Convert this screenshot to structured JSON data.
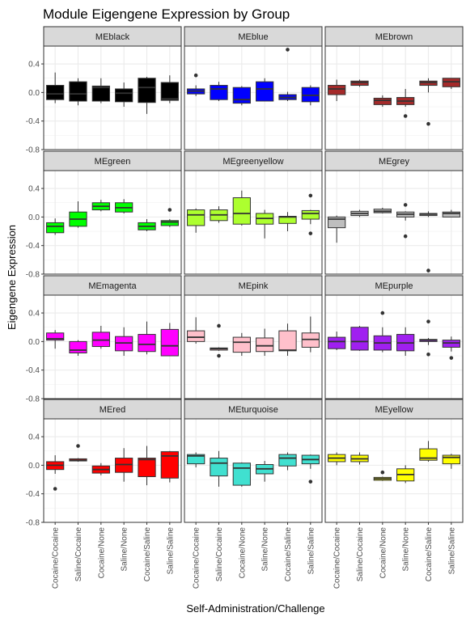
{
  "chart_data": {
    "type": "boxplot",
    "title": "Module Eigengene Expression by Group",
    "xlabel": "Self-Administration/Challenge",
    "ylabel": "Eigengene Expression",
    "ylim": [
      -0.8,
      0.65
    ],
    "yticks": [
      0.4,
      0.0,
      -0.4,
      -0.8
    ],
    "ytick_labels": [
      "0.4",
      "0.0",
      "-0.4",
      "-0.8"
    ],
    "grid": true,
    "facet_layout": {
      "rows": 4,
      "cols": 3
    },
    "categories": [
      "Cocaine/Cocaine",
      "Saline/Cocaine",
      "Cocaine/None",
      "Saline/None",
      "Cocaine/Saline",
      "Saline/Saline"
    ],
    "panels": [
      {
        "name": "MEblack",
        "color": "#000000",
        "boxes": [
          {
            "whisker_low": -0.15,
            "q1": -0.1,
            "median": -0.02,
            "q3": 0.1,
            "whisker_high": 0.28,
            "outliers": []
          },
          {
            "whisker_low": -0.18,
            "q1": -0.12,
            "median": -0.02,
            "q3": 0.15,
            "whisker_high": 0.2,
            "outliers": []
          },
          {
            "whisker_low": -0.15,
            "q1": -0.12,
            "median": 0.07,
            "q3": 0.09,
            "whisker_high": 0.2,
            "outliers": []
          },
          {
            "whisker_low": -0.2,
            "q1": -0.13,
            "median": -0.01,
            "q3": 0.05,
            "whisker_high": 0.14,
            "outliers": []
          },
          {
            "whisker_low": -0.3,
            "q1": -0.14,
            "median": 0.07,
            "q3": 0.2,
            "whisker_high": 0.22,
            "outliers": []
          },
          {
            "whisker_low": -0.15,
            "q1": -0.11,
            "median": -0.09,
            "q3": 0.14,
            "whisker_high": 0.24,
            "outliers": []
          }
        ]
      },
      {
        "name": "MEblue",
        "color": "#0000FF",
        "boxes": [
          {
            "whisker_low": -0.05,
            "q1": -0.02,
            "median": 0.02,
            "q3": 0.05,
            "whisker_high": 0.1,
            "outliers": [
              0.24
            ]
          },
          {
            "whisker_low": -0.12,
            "q1": -0.1,
            "median": 0.05,
            "q3": 0.1,
            "whisker_high": 0.15,
            "outliers": []
          },
          {
            "whisker_low": -0.18,
            "q1": -0.15,
            "median": -0.1,
            "q3": 0.07,
            "whisker_high": 0.09,
            "outliers": []
          },
          {
            "whisker_low": -0.12,
            "q1": -0.12,
            "median": 0.05,
            "q3": 0.15,
            "whisker_high": 0.2,
            "outliers": []
          },
          {
            "whisker_low": -0.12,
            "q1": -0.1,
            "median": -0.07,
            "q3": -0.03,
            "whisker_high": 0.01,
            "outliers": [
              0.6
            ]
          },
          {
            "whisker_low": -0.18,
            "q1": -0.13,
            "median": -0.04,
            "q3": 0.07,
            "whisker_high": 0.1,
            "outliers": []
          }
        ]
      },
      {
        "name": "MEbrown",
        "color": "#A52A2A",
        "boxes": [
          {
            "whisker_low": -0.12,
            "q1": -0.03,
            "median": 0.05,
            "q3": 0.1,
            "whisker_high": 0.18,
            "outliers": []
          },
          {
            "whisker_low": 0.08,
            "q1": 0.1,
            "median": 0.14,
            "q3": 0.16,
            "whisker_high": 0.18,
            "outliers": []
          },
          {
            "whisker_low": -0.2,
            "q1": -0.17,
            "median": -0.11,
            "q3": -0.08,
            "whisker_high": -0.04,
            "outliers": []
          },
          {
            "whisker_low": -0.2,
            "q1": -0.17,
            "median": -0.12,
            "q3": -0.07,
            "whisker_high": 0.05,
            "outliers": [
              -0.33
            ]
          },
          {
            "whisker_low": 0.0,
            "q1": 0.1,
            "median": 0.14,
            "q3": 0.16,
            "whisker_high": 0.2,
            "outliers": [
              -0.44
            ]
          },
          {
            "whisker_low": 0.05,
            "q1": 0.08,
            "median": 0.15,
            "q3": 0.2,
            "whisker_high": 0.2,
            "outliers": []
          }
        ]
      },
      {
        "name": "MEgreen",
        "color": "#00FF00",
        "boxes": [
          {
            "whisker_low": -0.25,
            "q1": -0.22,
            "median": -0.13,
            "q3": -0.08,
            "whisker_high": -0.02,
            "outliers": []
          },
          {
            "whisker_low": -0.15,
            "q1": -0.13,
            "median": -0.03,
            "q3": 0.07,
            "whisker_high": 0.22,
            "outliers": []
          },
          {
            "whisker_low": 0.08,
            "q1": 0.1,
            "median": 0.15,
            "q3": 0.2,
            "whisker_high": 0.24,
            "outliers": []
          },
          {
            "whisker_low": 0.05,
            "q1": 0.07,
            "median": 0.13,
            "q3": 0.2,
            "whisker_high": 0.25,
            "outliers": []
          },
          {
            "whisker_low": -0.2,
            "q1": -0.18,
            "median": -0.13,
            "q3": -0.08,
            "whisker_high": -0.03,
            "outliers": []
          },
          {
            "whisker_low": -0.14,
            "q1": -0.12,
            "median": -0.07,
            "q3": -0.05,
            "whisker_high": -0.03,
            "outliers": [
              0.1
            ]
          }
        ]
      },
      {
        "name": "MEgreenyellow",
        "color": "#ADFF2F",
        "boxes": [
          {
            "whisker_low": -0.22,
            "q1": -0.12,
            "median": 0.03,
            "q3": 0.1,
            "whisker_high": 0.12,
            "outliers": []
          },
          {
            "whisker_low": -0.08,
            "q1": -0.05,
            "median": 0.03,
            "q3": 0.1,
            "whisker_high": 0.15,
            "outliers": []
          },
          {
            "whisker_low": -0.12,
            "q1": -0.1,
            "median": 0.05,
            "q3": 0.27,
            "whisker_high": 0.37,
            "outliers": []
          },
          {
            "whisker_low": -0.3,
            "q1": -0.1,
            "median": -0.02,
            "q3": 0.05,
            "whisker_high": 0.1,
            "outliers": []
          },
          {
            "whisker_low": -0.2,
            "q1": -0.09,
            "median": 0.0,
            "q3": 0.01,
            "whisker_high": 0.07,
            "outliers": []
          },
          {
            "whisker_low": -0.1,
            "q1": -0.03,
            "median": 0.05,
            "q3": 0.09,
            "whisker_high": 0.1,
            "outliers": [
              0.3,
              -0.23
            ]
          }
        ]
      },
      {
        "name": "MEgrey",
        "color": "#BEBEBE",
        "boxes": [
          {
            "whisker_low": -0.36,
            "q1": -0.15,
            "median": -0.03,
            "q3": 0.0,
            "whisker_high": 0.02,
            "outliers": []
          },
          {
            "whisker_low": 0.0,
            "q1": 0.02,
            "median": 0.05,
            "q3": 0.08,
            "whisker_high": 0.1,
            "outliers": []
          },
          {
            "whisker_low": 0.05,
            "q1": 0.06,
            "median": 0.08,
            "q3": 0.11,
            "whisker_high": 0.13,
            "outliers": []
          },
          {
            "whisker_low": -0.05,
            "q1": 0.0,
            "median": 0.04,
            "q3": 0.07,
            "whisker_high": 0.08,
            "outliers": [
              0.17,
              -0.27
            ]
          },
          {
            "whisker_low": 0.0,
            "q1": 0.02,
            "median": 0.04,
            "q3": 0.05,
            "whisker_high": 0.08,
            "outliers": [
              -0.75
            ]
          },
          {
            "whisker_low": 0.0,
            "q1": 0.0,
            "median": 0.05,
            "q3": 0.07,
            "whisker_high": 0.1,
            "outliers": []
          }
        ]
      },
      {
        "name": "MEmagenta",
        "color": "#FF00FF",
        "boxes": [
          {
            "whisker_low": -0.1,
            "q1": 0.02,
            "median": 0.04,
            "q3": 0.12,
            "whisker_high": 0.16,
            "outliers": []
          },
          {
            "whisker_low": -0.2,
            "q1": -0.16,
            "median": -0.12,
            "q3": 0.0,
            "whisker_high": 0.02,
            "outliers": []
          },
          {
            "whisker_low": -0.1,
            "q1": -0.07,
            "median": 0.02,
            "q3": 0.13,
            "whisker_high": 0.22,
            "outliers": []
          },
          {
            "whisker_low": -0.2,
            "q1": -0.13,
            "median": -0.02,
            "q3": 0.07,
            "whisker_high": 0.2,
            "outliers": []
          },
          {
            "whisker_low": -0.18,
            "q1": -0.14,
            "median": -0.04,
            "q3": 0.1,
            "whisker_high": 0.28,
            "outliers": []
          },
          {
            "whisker_low": -0.2,
            "q1": -0.2,
            "median": -0.06,
            "q3": 0.17,
            "whisker_high": 0.26,
            "outliers": []
          }
        ]
      },
      {
        "name": "MEpink",
        "color": "#FFC0CB",
        "boxes": [
          {
            "whisker_low": -0.03,
            "q1": 0.0,
            "median": 0.06,
            "q3": 0.15,
            "whisker_high": 0.34,
            "outliers": []
          },
          {
            "whisker_low": -0.13,
            "q1": -0.12,
            "median": -0.1,
            "q3": -0.09,
            "whisker_high": -0.08,
            "outliers": [
              0.22,
              -0.2
            ]
          },
          {
            "whisker_low": -0.2,
            "q1": -0.15,
            "median": -0.01,
            "q3": 0.06,
            "whisker_high": 0.12,
            "outliers": []
          },
          {
            "whisker_low": -0.2,
            "q1": -0.14,
            "median": -0.06,
            "q3": 0.05,
            "whisker_high": 0.18,
            "outliers": []
          },
          {
            "whisker_low": -0.2,
            "q1": -0.13,
            "median": -0.12,
            "q3": 0.15,
            "whisker_high": 0.25,
            "outliers": []
          },
          {
            "whisker_low": -0.15,
            "q1": -0.08,
            "median": 0.03,
            "q3": 0.12,
            "whisker_high": 0.35,
            "outliers": []
          }
        ]
      },
      {
        "name": "MEpurple",
        "color": "#A020F0",
        "boxes": [
          {
            "whisker_low": -0.12,
            "q1": -0.1,
            "median": 0.0,
            "q3": 0.06,
            "whisker_high": 0.14,
            "outliers": []
          },
          {
            "whisker_low": -0.13,
            "q1": -0.12,
            "median": 0.0,
            "q3": 0.2,
            "whisker_high": 0.22,
            "outliers": []
          },
          {
            "whisker_low": -0.15,
            "q1": -0.12,
            "median": -0.02,
            "q3": 0.08,
            "whisker_high": 0.2,
            "outliers": [
              0.4
            ]
          },
          {
            "whisker_low": -0.2,
            "q1": -0.13,
            "median": -0.02,
            "q3": 0.1,
            "whisker_high": 0.2,
            "outliers": []
          },
          {
            "whisker_low": -0.05,
            "q1": 0.0,
            "median": 0.02,
            "q3": 0.03,
            "whisker_high": 0.05,
            "outliers": [
              0.28,
              -0.18
            ]
          },
          {
            "whisker_low": -0.14,
            "q1": -0.08,
            "median": -0.02,
            "q3": 0.02,
            "whisker_high": 0.07,
            "outliers": [
              -0.23
            ]
          }
        ]
      },
      {
        "name": "MEred",
        "color": "#FF0000",
        "boxes": [
          {
            "whisker_low": -0.12,
            "q1": -0.06,
            "median": 0.0,
            "q3": 0.05,
            "whisker_high": 0.14,
            "outliers": [
              -0.33
            ]
          },
          {
            "whisker_low": 0.05,
            "q1": 0.06,
            "median": 0.07,
            "q3": 0.09,
            "whisker_high": 0.1,
            "outliers": [
              0.27
            ]
          },
          {
            "whisker_low": -0.14,
            "q1": -0.11,
            "median": -0.06,
            "q3": -0.01,
            "whisker_high": 0.03,
            "outliers": []
          },
          {
            "whisker_low": -0.23,
            "q1": -0.1,
            "median": 0.01,
            "q3": 0.1,
            "whisker_high": 0.24,
            "outliers": []
          },
          {
            "whisker_low": -0.28,
            "q1": -0.16,
            "median": 0.08,
            "q3": 0.1,
            "whisker_high": 0.27,
            "outliers": []
          },
          {
            "whisker_low": -0.24,
            "q1": -0.18,
            "median": 0.13,
            "q3": 0.19,
            "whisker_high": 0.2,
            "outliers": []
          }
        ]
      },
      {
        "name": "MEturquoise",
        "color": "#40E0D0",
        "boxes": [
          {
            "whisker_low": -0.03,
            "q1": 0.02,
            "median": 0.13,
            "q3": 0.15,
            "whisker_high": 0.18,
            "outliers": []
          },
          {
            "whisker_low": -0.3,
            "q1": -0.15,
            "median": 0.03,
            "q3": 0.1,
            "whisker_high": 0.2,
            "outliers": []
          },
          {
            "whisker_low": -0.3,
            "q1": -0.28,
            "median": -0.04,
            "q3": 0.03,
            "whisker_high": 0.04,
            "outliers": []
          },
          {
            "whisker_low": -0.23,
            "q1": -0.12,
            "median": -0.05,
            "q3": 0.01,
            "whisker_high": 0.06,
            "outliers": []
          },
          {
            "whisker_low": -0.07,
            "q1": -0.01,
            "median": 0.1,
            "q3": 0.15,
            "whisker_high": 0.18,
            "outliers": []
          },
          {
            "whisker_low": -0.05,
            "q1": 0.02,
            "median": 0.08,
            "q3": 0.14,
            "whisker_high": 0.15,
            "outliers": [
              -0.23
            ]
          }
        ]
      },
      {
        "name": "MEyellow",
        "color": "#FFFF00",
        "boxes": [
          {
            "whisker_low": 0.0,
            "q1": 0.05,
            "median": 0.1,
            "q3": 0.15,
            "whisker_high": 0.18,
            "outliers": []
          },
          {
            "whisker_low": 0.01,
            "q1": 0.05,
            "median": 0.09,
            "q3": 0.14,
            "whisker_high": 0.18,
            "outliers": []
          },
          {
            "whisker_low": -0.22,
            "q1": -0.21,
            "median": -0.19,
            "q3": -0.17,
            "whisker_high": -0.16,
            "outliers": [
              -0.1
            ]
          },
          {
            "whisker_low": -0.25,
            "q1": -0.22,
            "median": -0.13,
            "q3": -0.05,
            "whisker_high": 0.0,
            "outliers": []
          },
          {
            "whisker_low": 0.05,
            "q1": 0.07,
            "median": 0.1,
            "q3": 0.23,
            "whisker_high": 0.34,
            "outliers": []
          },
          {
            "whisker_low": -0.05,
            "q1": 0.02,
            "median": 0.11,
            "q3": 0.14,
            "whisker_high": 0.16,
            "outliers": []
          }
        ]
      }
    ]
  }
}
